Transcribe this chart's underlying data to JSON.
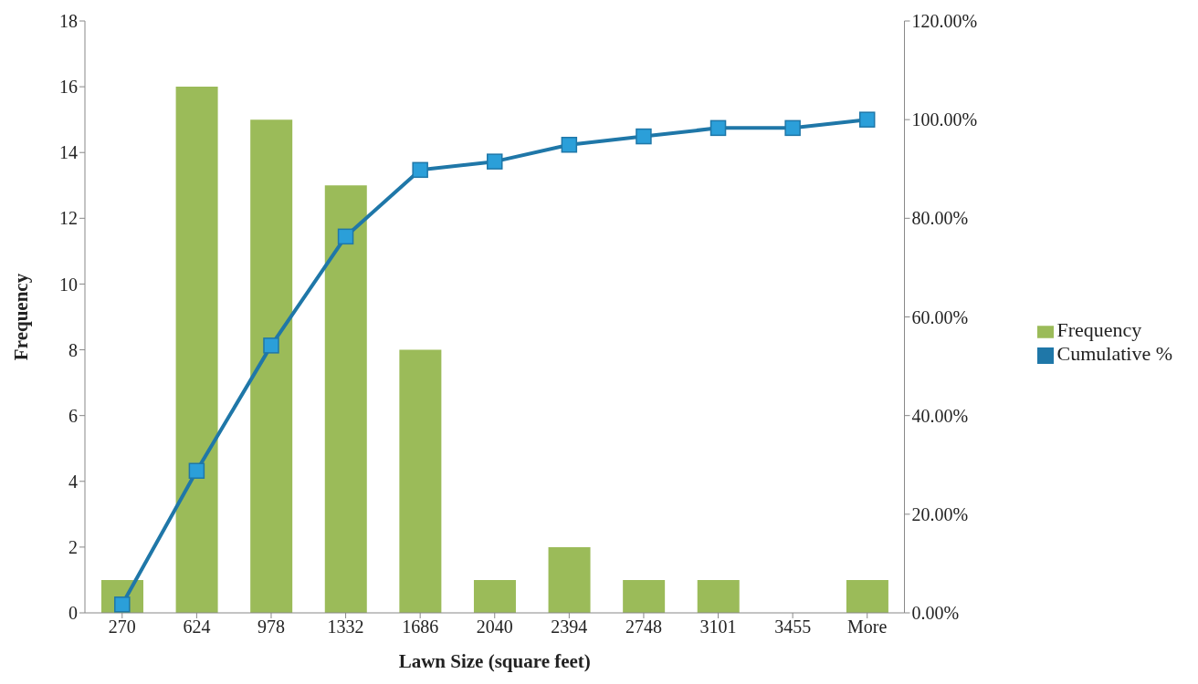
{
  "chart_data": {
    "type": "bar",
    "xlabel": "Lawn Size (square feet)",
    "ylabel": "Frequency",
    "categories": [
      "270",
      "624",
      "978",
      "1332",
      "1686",
      "2040",
      "2394",
      "2748",
      "3101",
      "3455",
      "More"
    ],
    "series": [
      {
        "name": "Frequency",
        "color": "#9bbb59",
        "values": [
          1,
          16,
          15,
          13,
          8,
          1,
          2,
          1,
          1,
          0,
          1
        ]
      },
      {
        "name": "Cumulative %",
        "type": "line",
        "axis": "y2",
        "color": "#1f77a8",
        "marker": "square",
        "values": [
          1.7,
          28.8,
          54.2,
          76.3,
          89.8,
          91.5,
          94.9,
          96.6,
          98.3,
          98.3,
          100
        ]
      }
    ],
    "ylim": [
      0,
      18
    ],
    "yticks": [
      0,
      2,
      4,
      6,
      8,
      10,
      12,
      14,
      16,
      18
    ],
    "y2lim": [
      0,
      120
    ],
    "y2ticks": [
      {
        "value": 0,
        "label": "0.00%"
      },
      {
        "value": 20,
        "label": "20.00%"
      },
      {
        "value": 40,
        "label": "40.00%"
      },
      {
        "value": 60,
        "label": "60.00%"
      },
      {
        "value": 80,
        "label": "80.00%"
      },
      {
        "value": 100,
        "label": "100.00%"
      },
      {
        "value": 120,
        "label": "120.00%"
      }
    ],
    "grid": false,
    "legend": "right"
  }
}
